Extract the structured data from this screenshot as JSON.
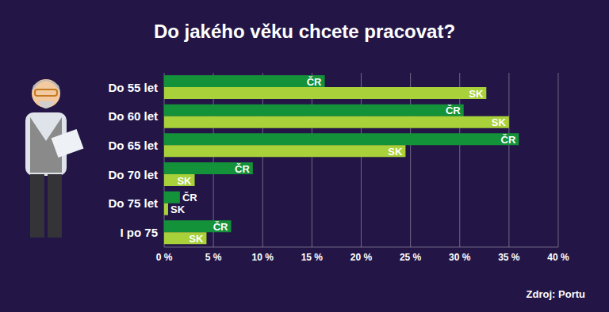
{
  "chart_data": {
    "type": "bar",
    "title": "Do jakého věku chcete pracovat?",
    "orientation": "horizontal",
    "categories": [
      "Do 55 let",
      "Do 60 let",
      "Do 65 let",
      "Do 70 let",
      "Do 75 let",
      "I po 75"
    ],
    "series": [
      {
        "name": "ČR",
        "color": "#14923a",
        "values": [
          16.3,
          30.4,
          36.0,
          9.0,
          1.6,
          6.8
        ]
      },
      {
        "name": "SK",
        "color": "#a8d13a",
        "values": [
          32.7,
          35.0,
          24.5,
          3.1,
          0.4,
          4.3
        ]
      }
    ],
    "xlim": [
      0,
      40
    ],
    "xticks": [
      {
        "value": 0,
        "label": "0 %"
      },
      {
        "value": 5,
        "label": "5 %"
      },
      {
        "value": 10,
        "label": "10 %"
      },
      {
        "value": 15,
        "label": "15 %"
      },
      {
        "value": 20,
        "label": "20 %"
      },
      {
        "value": 25,
        "label": "25 %"
      },
      {
        "value": 30,
        "label": "30 %"
      },
      {
        "value": 35,
        "label": "35 %"
      },
      {
        "value": 40,
        "label": "40 %"
      }
    ],
    "grid": true,
    "source": "Zdroj: Portu"
  }
}
